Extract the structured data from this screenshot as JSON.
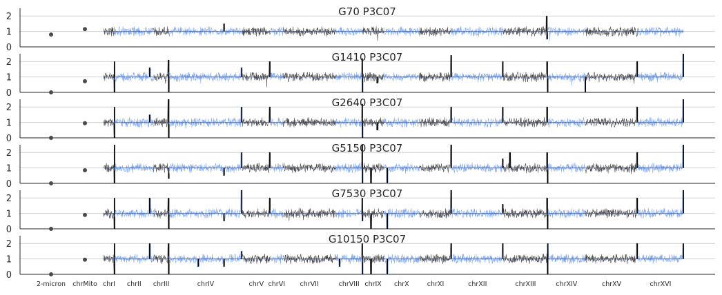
{
  "chart_data": {
    "type": "line",
    "description_free": true,
    "chromosomes": [
      "2-micron",
      "chrMito",
      "chrI",
      "chrII",
      "chrIII",
      "chrIV",
      "chrV",
      "chrVI",
      "chrVII",
      "chrVIII",
      "chrIX",
      "chrX",
      "chrXI",
      "chrXII",
      "chrXIII",
      "chrXIV",
      "chrXV",
      "chrXVI"
    ],
    "chromosome_lengths_kb": [
      6.3,
      0,
      230,
      813,
      317,
      1532,
      577,
      270,
      1091,
      563,
      440,
      746,
      667,
      1078,
      924,
      784,
      1091,
      948
    ],
    "series_colors": {
      "odd": "#4a4a4a",
      "even": "#7fa8f0"
    },
    "ylim": [
      0,
      2.5
    ],
    "yticks": [
      0,
      1,
      2
    ],
    "panels": [
      {
        "title": "G70 P3C07",
        "point_values": {
          "2-micron": 0.8,
          "chrMito": 1.15
        },
        "events": [
          {
            "chrom": "chrIV",
            "pos": 0.75,
            "value": 1.5,
            "kind": "spike"
          },
          {
            "chrom": "chrXIII",
            "pos": 0.98,
            "value": 2.0,
            "kind": "spike"
          },
          {
            "chrom": "chrXIII",
            "pos": 0.99,
            "value": 0.5,
            "kind": "dip"
          }
        ]
      },
      {
        "title": "G1410 P3C07",
        "point_values": {
          "2-micron": 0.0,
          "chrMito": 0.72
        },
        "events": [
          {
            "chrom": "chrI",
            "pos": 0.99,
            "value": 2.0,
            "kind": "spike"
          },
          {
            "chrom": "chrI",
            "pos": 1.0,
            "value": 0.0,
            "kind": "dip"
          },
          {
            "chrom": "chrII",
            "pos": 0.9,
            "value": 1.6,
            "kind": "spike"
          },
          {
            "chrom": "chrIII",
            "pos": 0.99,
            "value": 2.1,
            "kind": "spike"
          },
          {
            "chrom": "chrIII",
            "pos": 1.0,
            "value": 0.0,
            "kind": "dip"
          },
          {
            "chrom": "chrIV",
            "pos": 0.99,
            "value": 1.6,
            "kind": "spike"
          },
          {
            "chrom": "chrV",
            "pos": 0.99,
            "value": 2.0,
            "kind": "spike"
          },
          {
            "chrom": "chrVIII",
            "pos": 0.99,
            "value": 2.2,
            "kind": "spike"
          },
          {
            "chrom": "chrVIII",
            "pos": 1.0,
            "value": 0.0,
            "kind": "dip"
          },
          {
            "chrom": "chrIX",
            "pos": 0.7,
            "value": 0.6,
            "kind": "dip"
          },
          {
            "chrom": "chrXI",
            "pos": 0.99,
            "value": 2.4,
            "kind": "spike"
          },
          {
            "chrom": "chrXII",
            "pos": 0.99,
            "value": 2.0,
            "kind": "spike"
          },
          {
            "chrom": "chrXIII",
            "pos": 0.99,
            "value": 2.0,
            "kind": "spike"
          },
          {
            "chrom": "chrXIII",
            "pos": 1.0,
            "value": 0.0,
            "kind": "dip"
          },
          {
            "chrom": "chrXIV",
            "pos": 1.0,
            "value": 0.0,
            "kind": "dip"
          },
          {
            "chrom": "chrXV",
            "pos": 0.99,
            "value": 2.0,
            "kind": "spike"
          },
          {
            "chrom": "chrXVI",
            "pos": 1.0,
            "value": 2.5,
            "kind": "spike"
          }
        ]
      },
      {
        "title": "G2640 P3C07",
        "point_values": {
          "2-micron": 0.0,
          "chrMito": 0.95
        },
        "events": [
          {
            "chrom": "chrI",
            "pos": 0.99,
            "value": 2.0,
            "kind": "spike"
          },
          {
            "chrom": "chrI",
            "pos": 1.0,
            "value": 0.0,
            "kind": "dip"
          },
          {
            "chrom": "chrII",
            "pos": 0.9,
            "value": 1.5,
            "kind": "spike"
          },
          {
            "chrom": "chrIII",
            "pos": 0.99,
            "value": 2.5,
            "kind": "spike"
          },
          {
            "chrom": "chrIII",
            "pos": 1.0,
            "value": 0.0,
            "kind": "dip"
          },
          {
            "chrom": "chrIV",
            "pos": 0.99,
            "value": 2.0,
            "kind": "spike"
          },
          {
            "chrom": "chrV",
            "pos": 0.99,
            "value": 2.0,
            "kind": "spike"
          },
          {
            "chrom": "chrVIII",
            "pos": 0.99,
            "value": 2.2,
            "kind": "spike"
          },
          {
            "chrom": "chrVIII",
            "pos": 1.0,
            "value": 0.0,
            "kind": "dip"
          },
          {
            "chrom": "chrIX",
            "pos": 0.7,
            "value": 0.5,
            "kind": "dip"
          },
          {
            "chrom": "chrXI",
            "pos": 0.99,
            "value": 2.0,
            "kind": "spike"
          },
          {
            "chrom": "chrXII",
            "pos": 0.99,
            "value": 2.0,
            "kind": "spike"
          },
          {
            "chrom": "chrXIII",
            "pos": 0.99,
            "value": 2.0,
            "kind": "spike"
          },
          {
            "chrom": "chrXV",
            "pos": 0.99,
            "value": 2.0,
            "kind": "spike"
          },
          {
            "chrom": "chrXVI",
            "pos": 1.0,
            "value": 2.5,
            "kind": "spike"
          }
        ]
      },
      {
        "title": "G5150 P3C07",
        "point_values": {
          "2-micron": 0.0,
          "chrMito": 0.85
        },
        "events": [
          {
            "chrom": "chrI",
            "pos": 0.99,
            "value": 2.5,
            "kind": "spike"
          },
          {
            "chrom": "chrI",
            "pos": 1.0,
            "value": 0.0,
            "kind": "dip"
          },
          {
            "chrom": "chrIII",
            "pos": 0.99,
            "value": 1.0,
            "kind": "spike"
          },
          {
            "chrom": "chrIII",
            "pos": 1.0,
            "value": 0.3,
            "kind": "dip"
          },
          {
            "chrom": "chrIV",
            "pos": 0.75,
            "value": 0.5,
            "kind": "dip"
          },
          {
            "chrom": "chrIV",
            "pos": 0.99,
            "value": 2.0,
            "kind": "spike"
          },
          {
            "chrom": "chrV",
            "pos": 0.99,
            "value": 2.0,
            "kind": "spike"
          },
          {
            "chrom": "chrVIII",
            "pos": 0.99,
            "value": 2.5,
            "kind": "spike"
          },
          {
            "chrom": "chrVIII",
            "pos": 1.0,
            "value": 0.0,
            "kind": "dip"
          },
          {
            "chrom": "chrIX",
            "pos": 0.4,
            "value": 0.0,
            "kind": "dip"
          },
          {
            "chrom": "chrX",
            "pos": 0.1,
            "value": 0.0,
            "kind": "dip"
          },
          {
            "chrom": "chrXI",
            "pos": 0.99,
            "value": 2.5,
            "kind": "spike"
          },
          {
            "chrom": "chrXII",
            "pos": 0.99,
            "value": 1.6,
            "kind": "spike"
          },
          {
            "chrom": "chrXIII",
            "pos": 0.15,
            "value": 2.0,
            "kind": "spike"
          },
          {
            "chrom": "chrXIII",
            "pos": 0.99,
            "value": 2.0,
            "kind": "spike"
          },
          {
            "chrom": "chrXIII",
            "pos": 1.0,
            "value": 0.0,
            "kind": "dip"
          },
          {
            "chrom": "chrXV",
            "pos": 0.99,
            "value": 2.0,
            "kind": "spike"
          },
          {
            "chrom": "chrXVI",
            "pos": 1.0,
            "value": 2.5,
            "kind": "spike"
          }
        ]
      },
      {
        "title": "G7530 P3C07",
        "point_values": {
          "2-micron": 0.0,
          "chrMito": 0.9
        },
        "events": [
          {
            "chrom": "chrI",
            "pos": 0.99,
            "value": 2.0,
            "kind": "spike"
          },
          {
            "chrom": "chrI",
            "pos": 1.0,
            "value": 0.0,
            "kind": "dip"
          },
          {
            "chrom": "chrII",
            "pos": 0.9,
            "value": 2.0,
            "kind": "spike"
          },
          {
            "chrom": "chrIII",
            "pos": 0.99,
            "value": 2.0,
            "kind": "spike"
          },
          {
            "chrom": "chrIII",
            "pos": 1.0,
            "value": 0.0,
            "kind": "dip"
          },
          {
            "chrom": "chrIV",
            "pos": 0.75,
            "value": 0.5,
            "kind": "dip"
          },
          {
            "chrom": "chrIV",
            "pos": 0.99,
            "value": 2.5,
            "kind": "spike"
          },
          {
            "chrom": "chrV",
            "pos": 0.99,
            "value": 2.0,
            "kind": "spike"
          },
          {
            "chrom": "chrVIII",
            "pos": 0.99,
            "value": 2.0,
            "kind": "spike"
          },
          {
            "chrom": "chrVIII",
            "pos": 1.0,
            "value": 0.5,
            "kind": "dip"
          },
          {
            "chrom": "chrIX",
            "pos": 0.4,
            "value": 0.0,
            "kind": "dip"
          },
          {
            "chrom": "chrX",
            "pos": 0.1,
            "value": 0.0,
            "kind": "dip"
          },
          {
            "chrom": "chrXI",
            "pos": 0.99,
            "value": 2.5,
            "kind": "spike"
          },
          {
            "chrom": "chrXII",
            "pos": 0.99,
            "value": 1.6,
            "kind": "spike"
          },
          {
            "chrom": "chrXIII",
            "pos": 0.99,
            "value": 2.0,
            "kind": "spike"
          },
          {
            "chrom": "chrXIII",
            "pos": 1.0,
            "value": 0.0,
            "kind": "dip"
          },
          {
            "chrom": "chrXV",
            "pos": 0.99,
            "value": 2.0,
            "kind": "spike"
          },
          {
            "chrom": "chrXVI",
            "pos": 1.0,
            "value": 2.5,
            "kind": "spike"
          }
        ]
      },
      {
        "title": "G10150 P3C07",
        "point_values": {
          "2-micron": 0.0,
          "chrMito": 0.95
        },
        "events": [
          {
            "chrom": "chrI",
            "pos": 0.99,
            "value": 2.0,
            "kind": "spike"
          },
          {
            "chrom": "chrI",
            "pos": 1.0,
            "value": 0.0,
            "kind": "dip"
          },
          {
            "chrom": "chrII",
            "pos": 0.9,
            "value": 2.0,
            "kind": "spike"
          },
          {
            "chrom": "chrIII",
            "pos": 0.99,
            "value": 2.0,
            "kind": "spike"
          },
          {
            "chrom": "chrIII",
            "pos": 1.0,
            "value": 0.0,
            "kind": "dip"
          },
          {
            "chrom": "chrIV",
            "pos": 0.4,
            "value": 0.5,
            "kind": "dip"
          },
          {
            "chrom": "chrIV",
            "pos": 0.75,
            "value": 0.5,
            "kind": "dip"
          },
          {
            "chrom": "chrIV",
            "pos": 0.99,
            "value": 1.5,
            "kind": "spike"
          },
          {
            "chrom": "chrVIII",
            "pos": 0.15,
            "value": 0.5,
            "kind": "dip"
          },
          {
            "chrom": "chrVIII",
            "pos": 0.99,
            "value": 2.0,
            "kind": "spike"
          },
          {
            "chrom": "chrVIII",
            "pos": 1.0,
            "value": 0.0,
            "kind": "dip"
          },
          {
            "chrom": "chrIX",
            "pos": 0.4,
            "value": 0.0,
            "kind": "dip"
          },
          {
            "chrom": "chrX",
            "pos": 0.1,
            "value": 0.0,
            "kind": "dip"
          },
          {
            "chrom": "chrXI",
            "pos": 0.99,
            "value": 2.0,
            "kind": "spike"
          },
          {
            "chrom": "chrXII",
            "pos": 0.99,
            "value": 2.0,
            "kind": "spike"
          },
          {
            "chrom": "chrXIII",
            "pos": 1.0,
            "value": 0.0,
            "kind": "dip"
          },
          {
            "chrom": "chrXIV",
            "pos": 0.0,
            "value": 2.0,
            "kind": "spike"
          },
          {
            "chrom": "chrXV",
            "pos": 0.99,
            "value": 2.0,
            "kind": "spike"
          },
          {
            "chrom": "chrXVI",
            "pos": 1.0,
            "value": 2.0,
            "kind": "spike"
          }
        ]
      }
    ]
  }
}
